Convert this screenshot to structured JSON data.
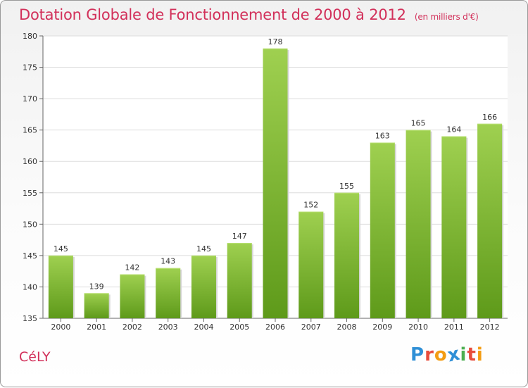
{
  "header": {
    "title": "Dotation Globale de Fonctionnement de 2000 à 2012",
    "subtitle": "(en milliers d'€)"
  },
  "footer": {
    "commune": "CéLY",
    "logo": [
      "P",
      "r",
      "o",
      "x",
      "i",
      "t",
      "i"
    ],
    "logo_colors": [
      "#2f8fd6",
      "#e74c3c",
      "#f39c12",
      "#2f8fd6",
      "#4caf50",
      "#e74c3c",
      "#f39c12"
    ]
  },
  "colors": {
    "title": "#d2305a",
    "bar_top": "#9fd050",
    "bar_bottom": "#5e9a1a"
  },
  "chart_data": {
    "type": "bar",
    "title": "Dotation Globale de Fonctionnement de 2000 à 2012",
    "subtitle": "(en milliers d'€)",
    "categories": [
      "2000",
      "2001",
      "2002",
      "2003",
      "2004",
      "2005",
      "2006",
      "2007",
      "2008",
      "2009",
      "2010",
      "2011",
      "2012"
    ],
    "values": [
      145,
      139,
      142,
      143,
      145,
      147,
      178,
      152,
      155,
      163,
      165,
      164,
      166
    ],
    "ylim": [
      135,
      180
    ],
    "yticks": [
      135,
      140,
      145,
      150,
      155,
      160,
      165,
      170,
      175,
      180
    ],
    "grid": true,
    "data_labels": true
  }
}
